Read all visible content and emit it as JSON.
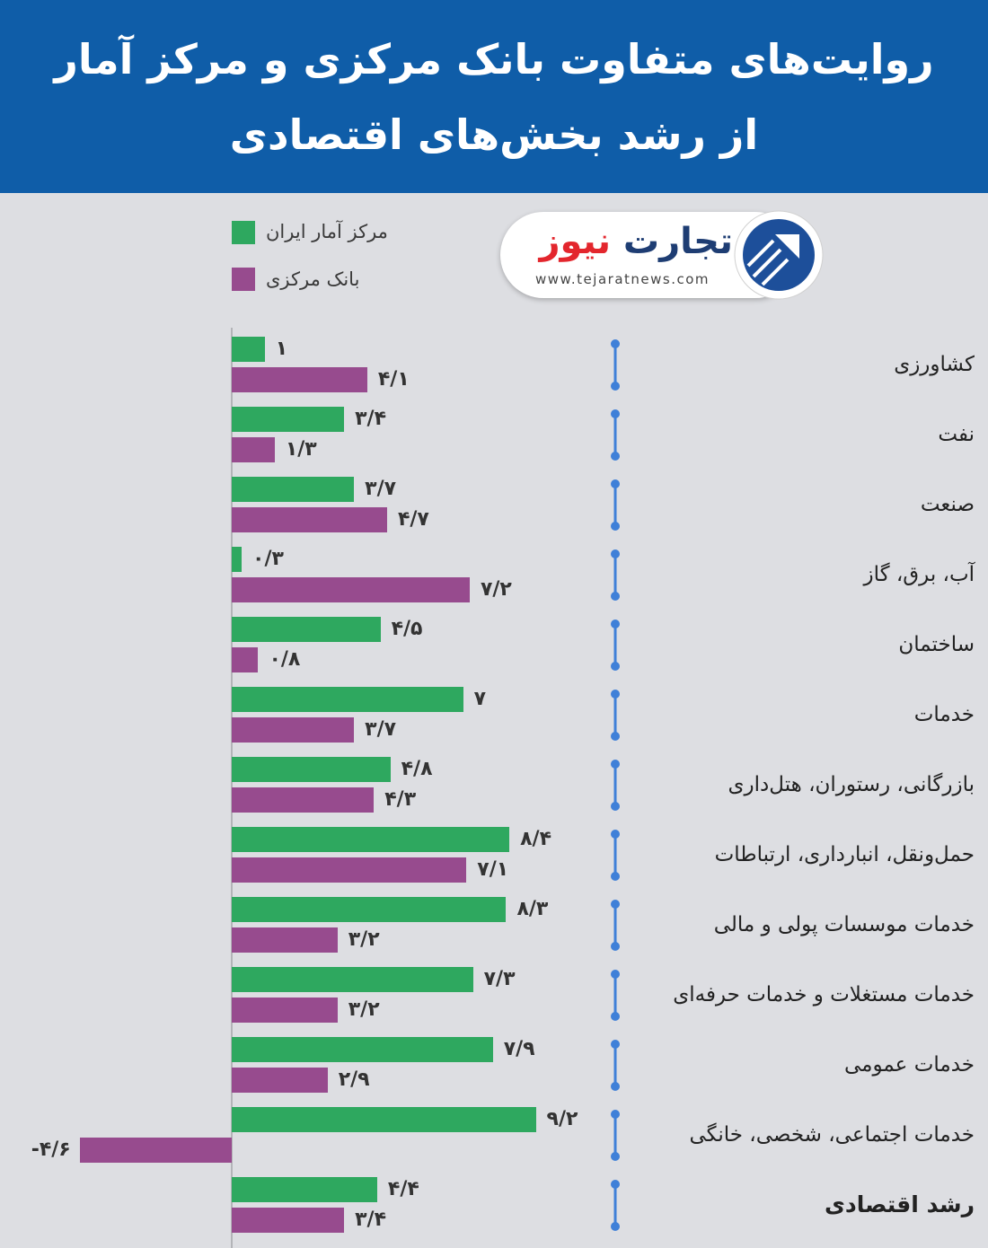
{
  "colors": {
    "header_background": "#0f5da8",
    "page_background": "#dddee2",
    "bracket": "#3f80d8",
    "logo_navy": "#1e3d73",
    "logo_red": "#e3262d"
  },
  "logo": {
    "name_first": "تجارت",
    "name_second": "نیوز",
    "website": "www.tejaratnews.com",
    "icon": "tejarat-arrow-logo-icon"
  },
  "chart_data": {
    "type": "bar",
    "orientation": "horizontal",
    "title_lines": [
      "روایت‌های متفاوت بانک مرکزی و مرکز آمار",
      "از رشد بخش‌های اقتصادی"
    ],
    "legend_position": "top-left",
    "grid": false,
    "categories": [
      "کشاورزی",
      "نفت",
      "صنعت",
      "آب، برق، گاز",
      "ساختمان",
      "خدمات",
      "بازرگانی، رستوران، هتل‌داری",
      "حمل‌ونقل، انبارداری، ارتباطات",
      "خدمات موسسات پولی و مالی",
      "خدمات مستغلات و خدمات حرفه‌ای",
      "خدمات عمومی",
      "خدمات اجتماعی، شخصی، خانگی",
      "رشد اقتصادی"
    ],
    "series": [
      {
        "name": "مرکز آمار ایران",
        "color": "#2ea85f",
        "values": [
          1,
          3.4,
          3.7,
          0.3,
          4.5,
          7,
          4.8,
          8.4,
          8.3,
          7.3,
          7.9,
          9.2,
          4.4
        ],
        "value_labels": [
          "۱",
          "۳/۴",
          "۳/۷",
          "۰/۳",
          "۴/۵",
          "۷",
          "۴/۸",
          "۸/۴",
          "۸/۳",
          "۷/۳",
          "۷/۹",
          "۹/۲",
          "۴/۴"
        ]
      },
      {
        "name": "بانک مرکزی",
        "color": "#974b8e",
        "values": [
          4.1,
          1.3,
          4.7,
          7.2,
          0.8,
          3.7,
          4.3,
          7.1,
          3.2,
          3.2,
          2.9,
          -4.6,
          3.4
        ],
        "value_labels": [
          "۴/۱",
          "۱/۳",
          "۴/۷",
          "۷/۲",
          "۰/۸",
          "۳/۷",
          "۴/۳",
          "۷/۱",
          "۳/۲",
          "۳/۲",
          "۲/۹",
          "-۴/۶",
          "۳/۴"
        ]
      }
    ]
  }
}
